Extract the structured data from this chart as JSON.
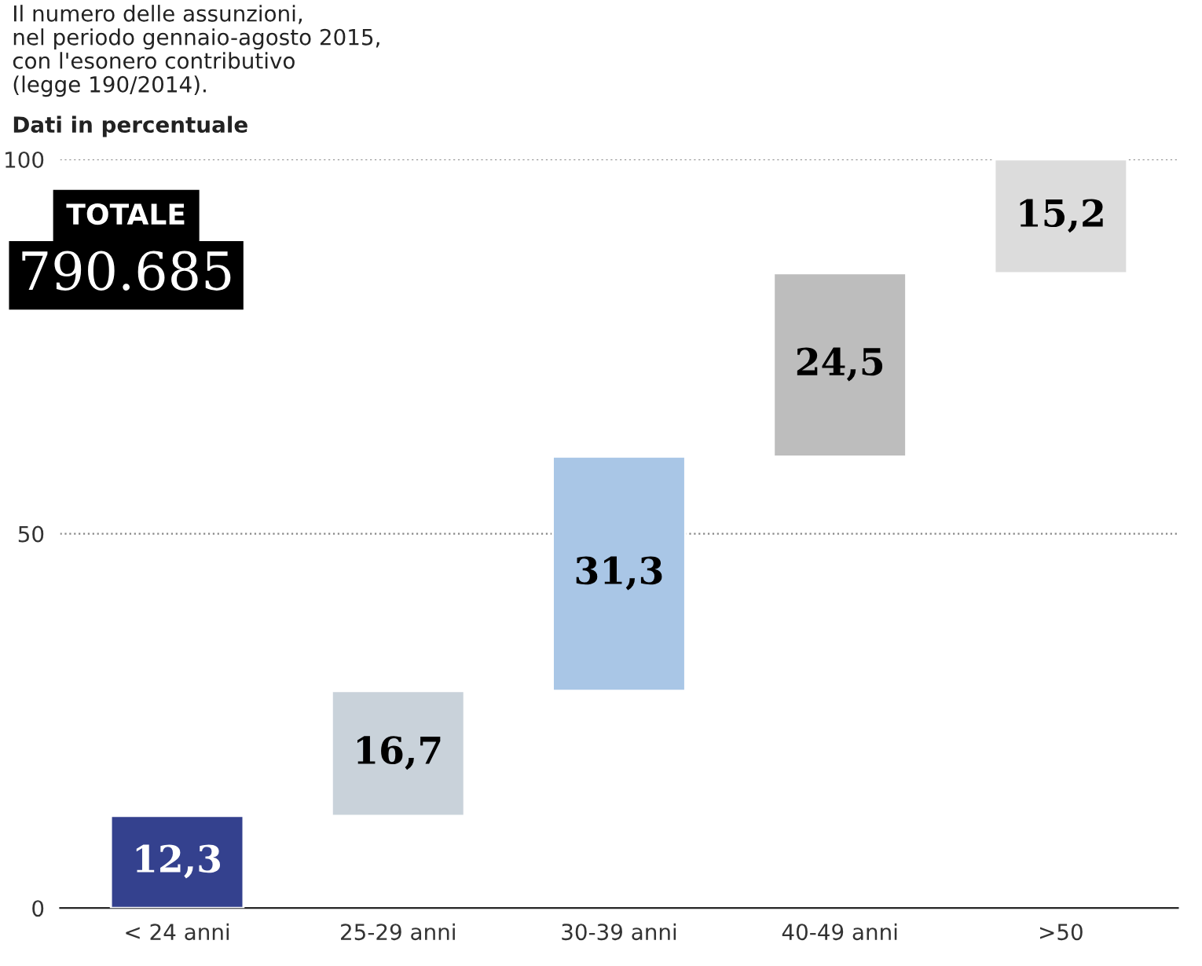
{
  "chart_data": {
    "type": "bar",
    "title": "Il numero delle assunzioni,\nnel periodo gennaio-agosto 2015,\ncon l'esonero contributivo\n(legge 190/2014).",
    "subtitle": "Dati in percentuale",
    "annotations": [
      "TOTALE",
      "790.685"
    ],
    "categories": [
      "< 24 anni",
      "25-29 anni",
      "30-39 anni",
      "40-49 anni",
      ">50"
    ],
    "values": [
      12.3,
      16.7,
      31.3,
      24.5,
      15.2
    ],
    "base": [
      0,
      12.3,
      29.0,
      60.3,
      84.8
    ],
    "colors": [
      "#34418e",
      "#c9d2da",
      "#a9c6e6",
      "#bdbdbd",
      "#dcdcdc"
    ],
    "value_labels": [
      "12,3",
      "16,7",
      "31,3",
      "24,5",
      "15,2"
    ],
    "ylim": [
      0,
      100
    ],
    "yticks": [
      0,
      50,
      100
    ],
    "grid": "y"
  }
}
